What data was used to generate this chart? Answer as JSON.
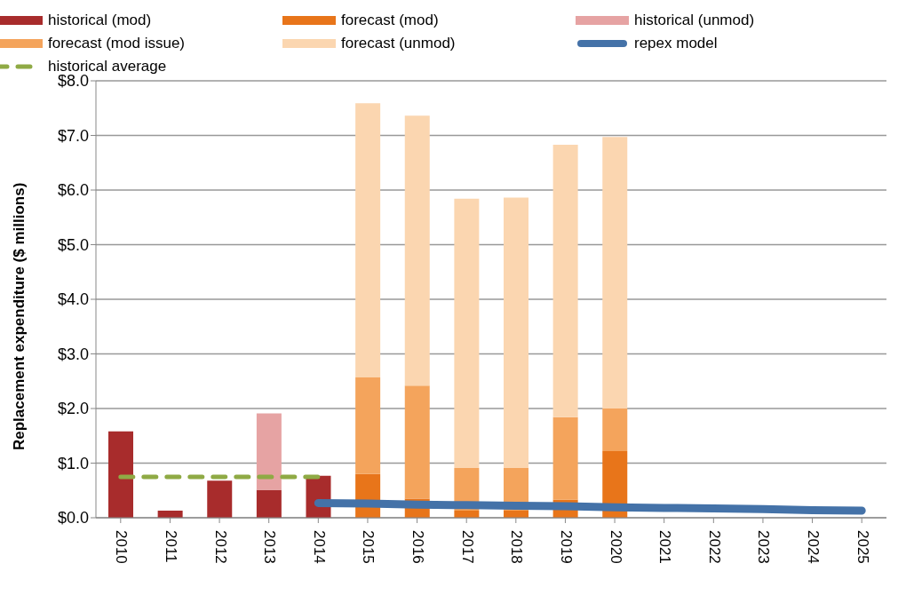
{
  "chart_data": {
    "type": "bar",
    "stacked": true,
    "ylabel": "Replacement expenditure ($ millions)",
    "categories": [
      "2010",
      "2011",
      "2012",
      "2013",
      "2014",
      "2015",
      "2016",
      "2017",
      "2018",
      "2019",
      "2020",
      "2021",
      "2022",
      "2023",
      "2024",
      "2025"
    ],
    "series": [
      {
        "name": "historical (mod)",
        "color": "#a82c2c",
        "values": [
          1.58,
          0.13,
          0.68,
          0.51,
          0.77,
          null,
          null,
          null,
          null,
          null,
          null,
          null,
          null,
          null,
          null,
          null
        ]
      },
      {
        "name": "forecast (mod)",
        "color": "#e8751a",
        "values": [
          null,
          null,
          null,
          null,
          null,
          0.8,
          0.35,
          0.13,
          0.13,
          0.33,
          1.22,
          null,
          null,
          null,
          null,
          null
        ]
      },
      {
        "name": "historical (unmod)",
        "color": "#e6a3a3",
        "values": [
          null,
          null,
          null,
          1.4,
          null,
          null,
          null,
          null,
          null,
          null,
          null,
          null,
          null,
          null,
          null,
          null
        ]
      },
      {
        "name": "forecast (mod issue)",
        "color": "#f4a45c",
        "values": [
          null,
          null,
          null,
          null,
          null,
          1.77,
          2.07,
          0.78,
          0.78,
          1.51,
          0.78,
          null,
          null,
          null,
          null,
          null
        ]
      },
      {
        "name": "forecast (unmod)",
        "color": "#fbd6b0",
        "values": [
          null,
          null,
          null,
          null,
          null,
          5.02,
          4.94,
          4.93,
          4.95,
          4.99,
          4.97,
          null,
          null,
          null,
          null,
          null
        ]
      },
      {
        "name": "repex model",
        "type": "line",
        "color": "#4472a8",
        "line_style": "solid",
        "values": [
          null,
          null,
          null,
          null,
          0.27,
          0.26,
          0.24,
          0.23,
          0.22,
          0.21,
          0.19,
          0.18,
          0.17,
          0.16,
          0.14,
          0.13
        ]
      },
      {
        "name": "historical average",
        "type": "line",
        "color": "#8faa45",
        "line_style": "dashed",
        "values": [
          0.75,
          0.75,
          0.75,
          0.75,
          0.75,
          null,
          null,
          null,
          null,
          null,
          null,
          null,
          null,
          null,
          null,
          null
        ]
      }
    ],
    "ylim": [
      0,
      8
    ],
    "yticks": [
      {
        "value": 0,
        "label": "$0.0"
      },
      {
        "value": 1,
        "label": "$1.0"
      },
      {
        "value": 2,
        "label": "$2.0"
      },
      {
        "value": 3,
        "label": "$3.0"
      },
      {
        "value": 4,
        "label": "$4.0"
      },
      {
        "value": 5,
        "label": "$5.0"
      },
      {
        "value": 6,
        "label": "$6.0"
      },
      {
        "value": 7,
        "label": "$7.0"
      },
      {
        "value": 8,
        "label": "$8.0"
      }
    ],
    "grid": "y",
    "legend": "top",
    "marker": "none"
  }
}
